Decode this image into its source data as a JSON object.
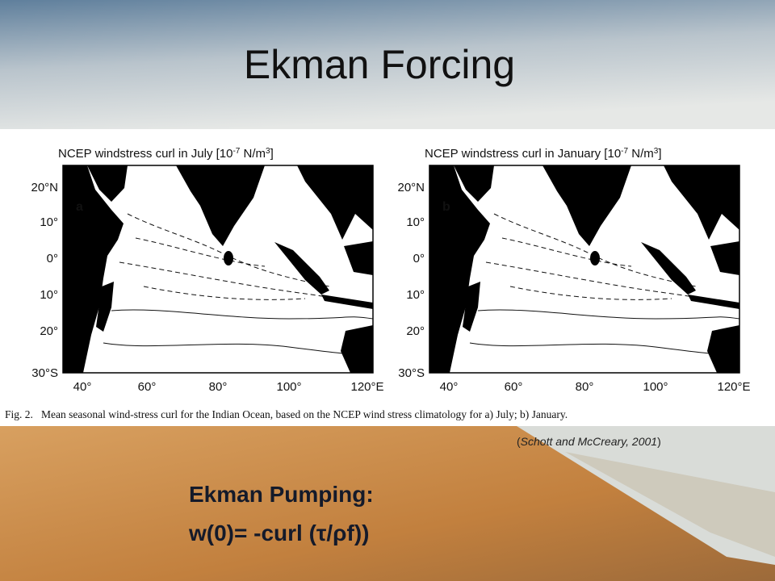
{
  "title": "Ekman Forcing",
  "figure": {
    "panels": [
      {
        "title_parts": [
          "NCEP windstress curl in July [10",
          "-7",
          " N/m",
          "3",
          "]"
        ],
        "letter": "a"
      },
      {
        "title_parts": [
          "NCEP windstress curl in January [10",
          "-7",
          " N/m",
          "3",
          "]"
        ],
        "letter": "b"
      }
    ],
    "y_labels": [
      "20°N",
      "10°",
      "0°",
      "10°",
      "20°",
      "30°S"
    ],
    "x_labels": [
      "40°",
      "60°",
      "80°",
      "100°",
      "120°E"
    ],
    "caption": "Fig. 2.   Mean seasonal wind-stress curl for the Indian Ocean, based on the NCEP wind stress climatology for a) July; b) January."
  },
  "citation": {
    "open": "(",
    "text": "Schott and McCreary, 2001",
    "close": ")"
  },
  "formula": {
    "line1": "Ekman Pumping:",
    "line2": "w(0)= -curl (τ/ρf))"
  }
}
